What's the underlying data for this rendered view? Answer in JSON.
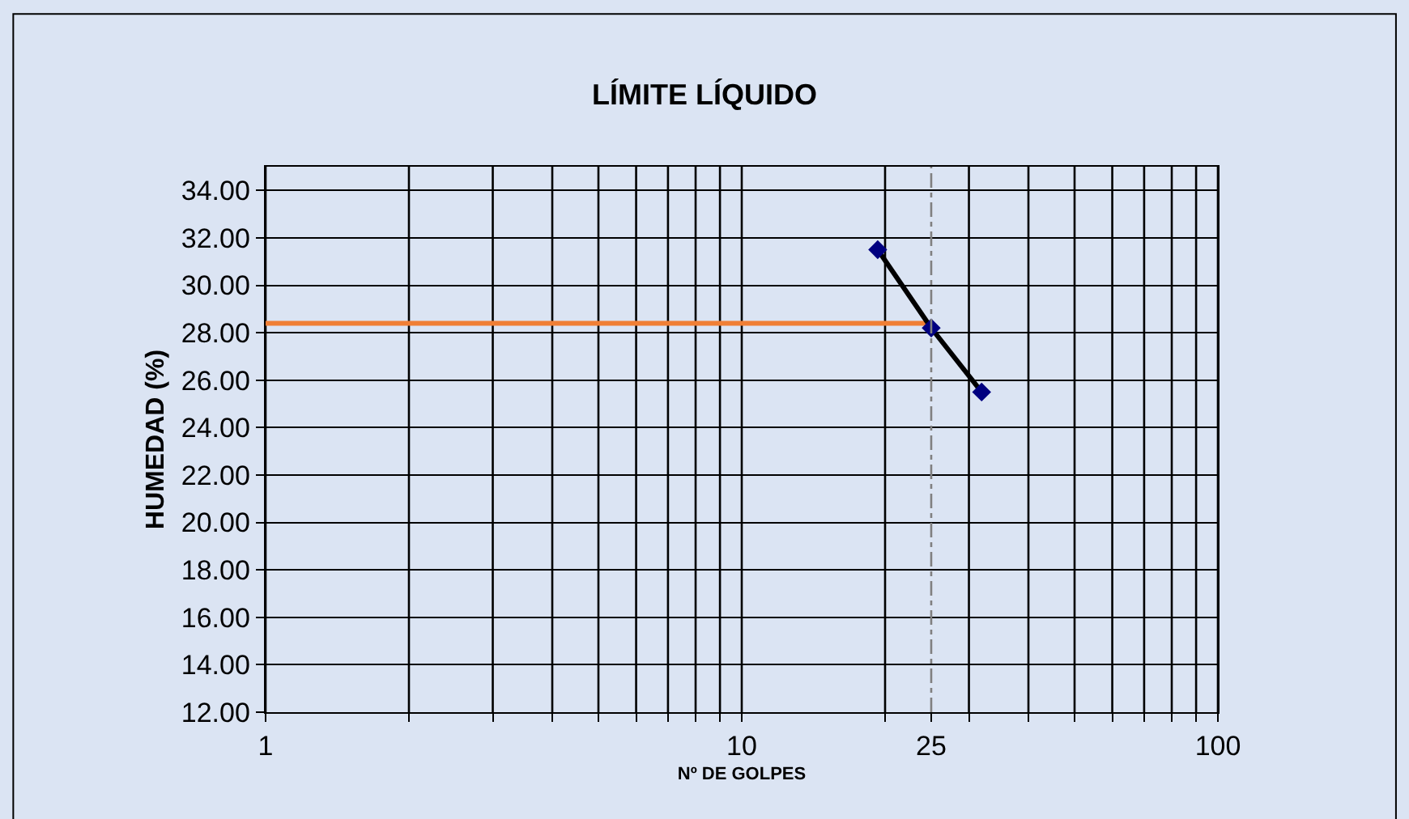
{
  "chart_data": {
    "type": "line",
    "title": "LÍMITE LÍQUIDO",
    "xlabel": "Nº DE GOLPES",
    "ylabel": "HUMEDAD (%)",
    "log": "x",
    "grid": true,
    "xlim": [
      1,
      100
    ],
    "ylim": [
      12,
      35
    ],
    "xticks": [
      1,
      {
        "value": 2,
        "label": null
      },
      {
        "value": 3,
        "label": null
      },
      {
        "value": 4,
        "label": null
      },
      {
        "value": 5,
        "label": null
      },
      {
        "value": 6,
        "label": null
      },
      {
        "value": 7,
        "label": null
      },
      {
        "value": 8,
        "label": null
      },
      {
        "value": 9,
        "label": null
      },
      10,
      {
        "value": 20,
        "label": null
      },
      25,
      {
        "value": 30,
        "label": null
      },
      {
        "value": 40,
        "label": null
      },
      {
        "value": 50,
        "label": null
      },
      {
        "value": 60,
        "label": null
      },
      {
        "value": 70,
        "label": null
      },
      {
        "value": 80,
        "label": null
      },
      {
        "value": 90,
        "label": null
      },
      100
    ],
    "yticks": [
      {
        "value": 12,
        "label": "12.00"
      },
      {
        "value": 14,
        "label": "14.00"
      },
      {
        "value": 16,
        "label": "16.00"
      },
      {
        "value": 18,
        "label": "18.00"
      },
      {
        "value": 20,
        "label": "20.00"
      },
      {
        "value": 22,
        "label": "22.00"
      },
      {
        "value": 24,
        "label": "24.00"
      },
      {
        "value": 26,
        "label": "26.00"
      },
      {
        "value": 28,
        "label": "28.00"
      },
      {
        "value": 30,
        "label": "30.00"
      },
      {
        "value": 32,
        "label": "32.00"
      },
      {
        "value": 34,
        "label": "34.00"
      }
    ],
    "series": [
      {
        "x": [
          1,
          25
        ],
        "values": [
          28.4,
          28.4
        ],
        "color": "#f07f35",
        "marker": "none"
      },
      {
        "x": [
          19.3,
          25,
          31.9
        ],
        "values": [
          31.5,
          28.2,
          25.5
        ],
        "color": "#000000",
        "marker": "diamond",
        "colors": [
          "#000080",
          "#000080",
          "#000080"
        ]
      }
    ],
    "ref_lines": [
      {
        "axis": "x",
        "value": 25,
        "color": "#808080",
        "line_style": "dashed"
      }
    ]
  }
}
